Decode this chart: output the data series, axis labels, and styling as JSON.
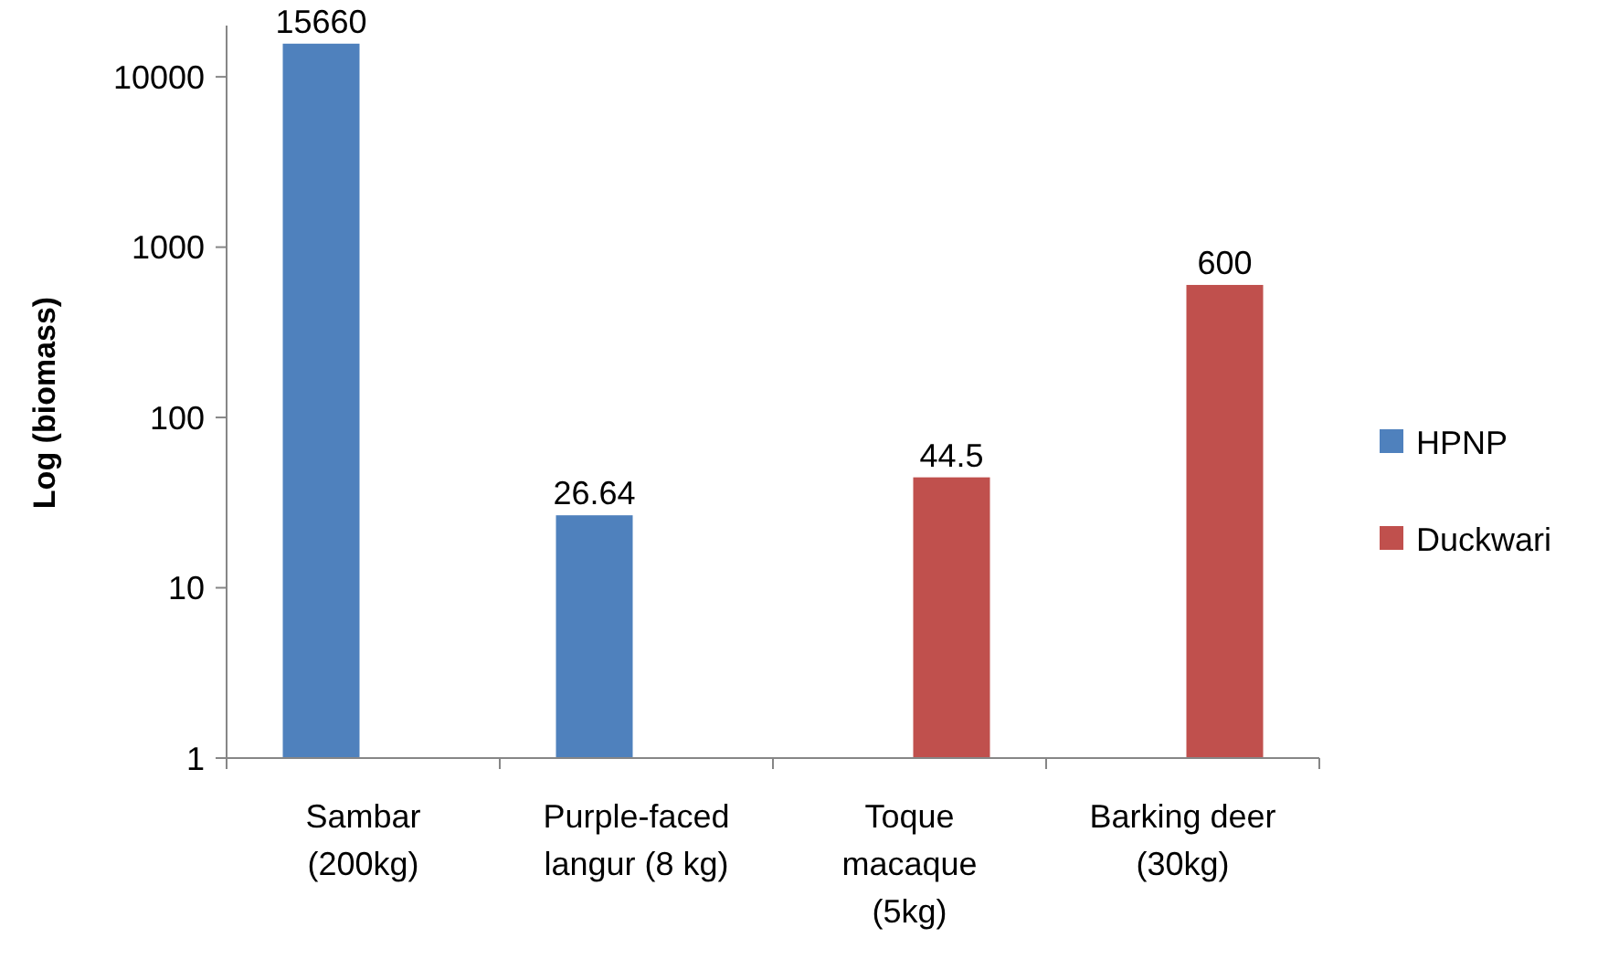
{
  "chart_data": {
    "type": "bar",
    "ylabel": "Log (biomass)",
    "categories": [
      "Sambar\n(200kg)",
      "Purple-faced\nlangur (8 kg)",
      "Toque\nmacaque\n(5kg)",
      "Barking deer\n(30kg)"
    ],
    "series": [
      {
        "name": "HPNP",
        "color": "#4f81bd",
        "values": [
          15660,
          26.64,
          null,
          null
        ]
      },
      {
        "name": "Duckwari",
        "color": "#c0504d",
        "values": [
          null,
          null,
          44.5,
          600
        ]
      }
    ],
    "log": true,
    "ylim": [
      1,
      20000
    ],
    "yticks": [
      1,
      10,
      100,
      1000,
      10000
    ],
    "data_labels": true,
    "legend": "right",
    "grid": false
  }
}
